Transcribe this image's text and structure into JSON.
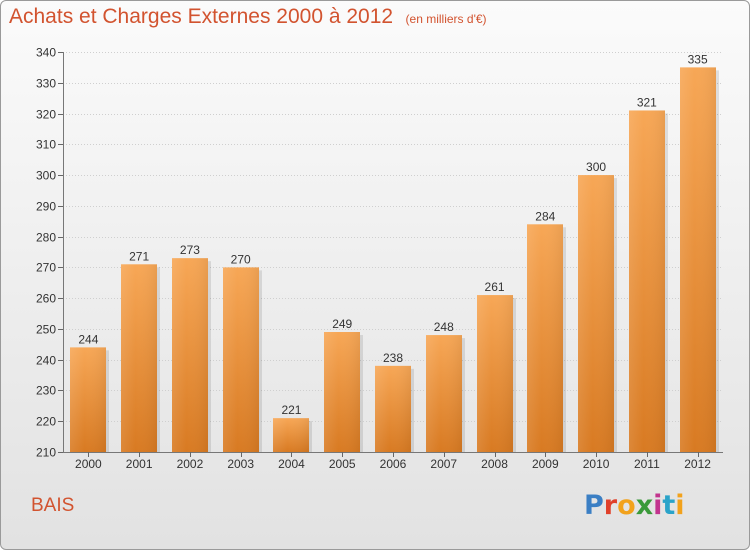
{
  "header": {
    "title": "Achats et Charges Externes 2000 à 2012",
    "unit_note": "(en milliers d'€)"
  },
  "footer": {
    "commune": "BAIS",
    "logo_text": "Proxiti"
  },
  "colors": {
    "bar_top": "#f7a756",
    "bar_bottom": "#d87a22",
    "title": "#d2532f"
  },
  "chart_data": {
    "type": "bar",
    "categories": [
      "2000",
      "2001",
      "2002",
      "2003",
      "2004",
      "2005",
      "2006",
      "2007",
      "2008",
      "2009",
      "2010",
      "2011",
      "2012"
    ],
    "values": [
      244,
      271,
      273,
      270,
      221,
      249,
      238,
      248,
      261,
      284,
      300,
      321,
      335
    ],
    "ylim": [
      210,
      340
    ],
    "yticks": [
      210,
      220,
      230,
      240,
      250,
      260,
      270,
      280,
      290,
      300,
      310,
      320,
      330,
      340
    ],
    "grid": true,
    "legend": "none"
  }
}
